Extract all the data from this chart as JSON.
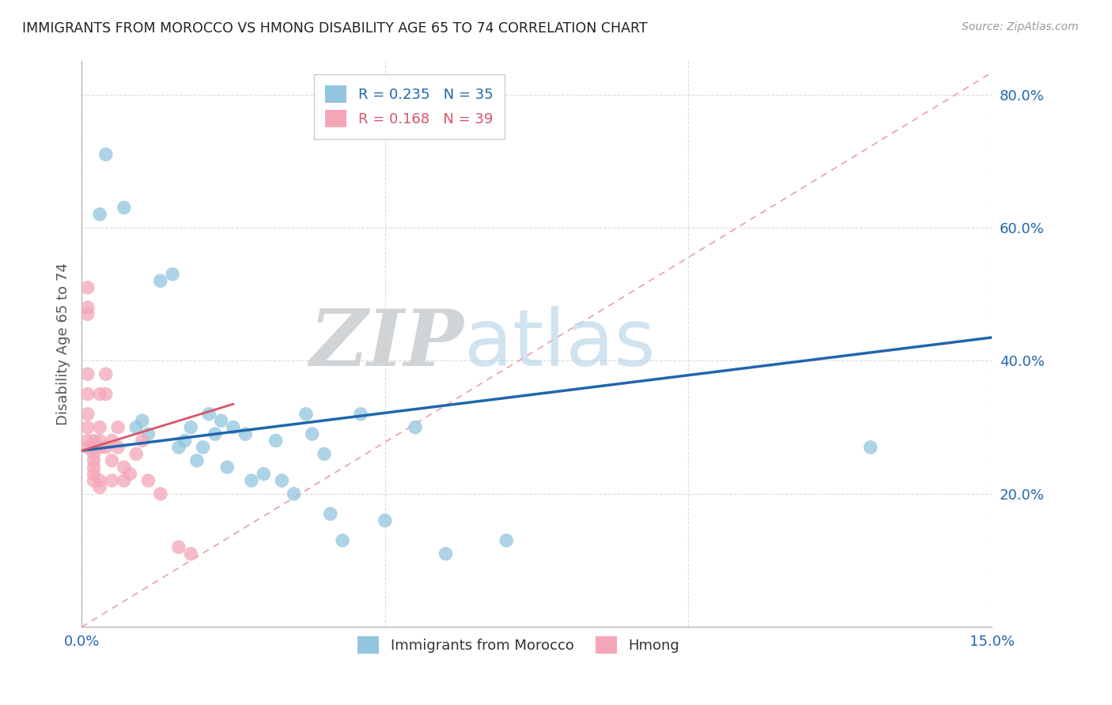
{
  "title": "IMMIGRANTS FROM MOROCCO VS HMONG DISABILITY AGE 65 TO 74 CORRELATION CHART",
  "source": "Source: ZipAtlas.com",
  "xlabel_blue": "Immigrants from Morocco",
  "xlabel_pink": "Hmong",
  "ylabel": "Disability Age 65 to 74",
  "xlim": [
    0.0,
    0.15
  ],
  "ylim": [
    0.0,
    0.85
  ],
  "xtick_positions": [
    0.0,
    0.05,
    0.1,
    0.15
  ],
  "xtick_labels": [
    "0.0%",
    "",
    "",
    "15.0%"
  ],
  "ytick_vals_right": [
    0.2,
    0.4,
    0.6,
    0.8
  ],
  "ytick_labels_right": [
    "20.0%",
    "40.0%",
    "60.0%",
    "80.0%"
  ],
  "legend_blue_r": "R = 0.235",
  "legend_blue_n": "N = 35",
  "legend_pink_r": "R = 0.168",
  "legend_pink_n": "N = 39",
  "blue_color": "#92C5DE",
  "pink_color": "#F4A6B8",
  "line_blue": "#2166AC",
  "line_pink": "#D6566A",
  "diagonal_color": "#E8A0A8",
  "bg_color": "#ffffff",
  "grid_color": "#dddddd",
  "watermark_zip": "ZIP",
  "watermark_atlas": "atlas",
  "morocco_x": [
    0.004,
    0.007,
    0.009,
    0.01,
    0.011,
    0.013,
    0.015,
    0.016,
    0.017,
    0.018,
    0.019,
    0.02,
    0.021,
    0.022,
    0.023,
    0.024,
    0.025,
    0.027,
    0.028,
    0.03,
    0.032,
    0.033,
    0.035,
    0.037,
    0.038,
    0.04,
    0.041,
    0.043,
    0.046,
    0.05,
    0.055,
    0.06,
    0.07,
    0.13,
    0.003
  ],
  "morocco_y": [
    0.71,
    0.63,
    0.3,
    0.31,
    0.29,
    0.52,
    0.53,
    0.27,
    0.28,
    0.3,
    0.25,
    0.27,
    0.32,
    0.29,
    0.31,
    0.24,
    0.3,
    0.29,
    0.22,
    0.23,
    0.28,
    0.22,
    0.2,
    0.32,
    0.29,
    0.26,
    0.17,
    0.13,
    0.32,
    0.16,
    0.3,
    0.11,
    0.13,
    0.27,
    0.62
  ],
  "hmong_x": [
    0.001,
    0.001,
    0.001,
    0.001,
    0.001,
    0.001,
    0.001,
    0.001,
    0.002,
    0.002,
    0.002,
    0.002,
    0.002,
    0.002,
    0.002,
    0.003,
    0.003,
    0.003,
    0.003,
    0.003,
    0.003,
    0.004,
    0.004,
    0.004,
    0.005,
    0.005,
    0.005,
    0.006,
    0.006,
    0.007,
    0.007,
    0.008,
    0.009,
    0.01,
    0.011,
    0.013,
    0.016,
    0.018,
    0.001
  ],
  "hmong_y": [
    0.27,
    0.28,
    0.3,
    0.47,
    0.48,
    0.32,
    0.35,
    0.38,
    0.26,
    0.27,
    0.28,
    0.22,
    0.23,
    0.24,
    0.25,
    0.27,
    0.28,
    0.3,
    0.22,
    0.21,
    0.35,
    0.27,
    0.35,
    0.38,
    0.28,
    0.25,
    0.22,
    0.27,
    0.3,
    0.24,
    0.22,
    0.23,
    0.26,
    0.28,
    0.22,
    0.2,
    0.12,
    0.11,
    0.51
  ],
  "blue_line_x": [
    0.0,
    0.15
  ],
  "blue_line_y": [
    0.265,
    0.435
  ],
  "pink_line_x": [
    0.0,
    0.025
  ],
  "pink_line_y": [
    0.265,
    0.335
  ]
}
